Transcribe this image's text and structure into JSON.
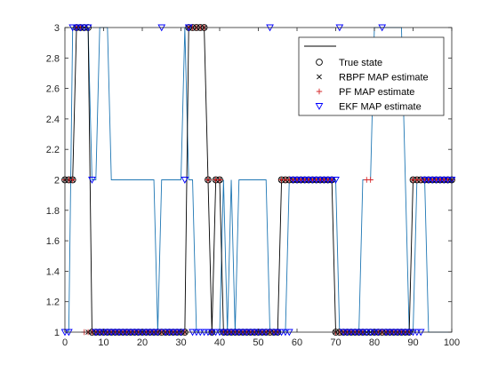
{
  "chart_data": {
    "type": "line",
    "xlim": [
      0,
      100
    ],
    "ylim": [
      1,
      3
    ],
    "xticks": [
      "0",
      "10",
      "20",
      "30",
      "40",
      "50",
      "60",
      "70",
      "80",
      "90",
      "100"
    ],
    "yticks": [
      "1",
      "1.2",
      "1.4",
      "1.6",
      "1.8",
      "2",
      "2.2",
      "2.4",
      "2.6",
      "2.8",
      "3"
    ],
    "grid": false,
    "legend_location": "top-right",
    "colors": {
      "true_state": "#000000",
      "rbpf": "#000000",
      "pf": "#d62728",
      "ekf": "#0000ff",
      "unlabeled": "#1f77b4"
    },
    "series": [
      {
        "name": "",
        "style": "line",
        "values": [
          1,
          1,
          3,
          3,
          3,
          3,
          3,
          2,
          2,
          3,
          3,
          3,
          2,
          2,
          2,
          2,
          2,
          2,
          2,
          2,
          2,
          2,
          2,
          2,
          1,
          2,
          2,
          2,
          2,
          2,
          2,
          3,
          2,
          2,
          1,
          1,
          1,
          1,
          1,
          1,
          1,
          2,
          1,
          2,
          1,
          2,
          2,
          2,
          2,
          2,
          2,
          2,
          2,
          1,
          1,
          1,
          1,
          1,
          2,
          2,
          2,
          2,
          2,
          2,
          2,
          2,
          2,
          2,
          2,
          2,
          2,
          1,
          1,
          1,
          1,
          1,
          1,
          2,
          2,
          2,
          3,
          3,
          3,
          3,
          3,
          3,
          3,
          3,
          2,
          1,
          1,
          2,
          2,
          2,
          1,
          1,
          1,
          1,
          1,
          1,
          1
        ]
      },
      {
        "name": "",
        "style": "line",
        "values": [
          2,
          2,
          2,
          3,
          3,
          3,
          3,
          1,
          1,
          1,
          1,
          1,
          1,
          1,
          1,
          1,
          1,
          1,
          1,
          1,
          1,
          1,
          1,
          1,
          1,
          1,
          1,
          1,
          1,
          1,
          1,
          1,
          3,
          3,
          3,
          3,
          3,
          2,
          1,
          2,
          2,
          1,
          1,
          1,
          1,
          1,
          1,
          1,
          1,
          1,
          1,
          1,
          1,
          1,
          1,
          1,
          2,
          2,
          2,
          2,
          2,
          2,
          2,
          2,
          2,
          2,
          2,
          2,
          2,
          2,
          1,
          1,
          1,
          1,
          1,
          1,
          1,
          1,
          1,
          1,
          1,
          1,
          1,
          1,
          1,
          1,
          1,
          1,
          1,
          1,
          2,
          2,
          2,
          2,
          2,
          2,
          2,
          2,
          2,
          2,
          2
        ]
      },
      {
        "name": "True state",
        "style": "marker",
        "marker": "circle",
        "values": [
          2,
          2,
          2,
          3,
          3,
          3,
          3,
          1,
          1,
          1,
          1,
          1,
          1,
          1,
          1,
          1,
          1,
          1,
          1,
          1,
          1,
          1,
          1,
          1,
          1,
          1,
          1,
          1,
          1,
          1,
          1,
          1,
          3,
          3,
          3,
          3,
          3,
          2,
          1,
          2,
          2,
          1,
          1,
          1,
          1,
          1,
          1,
          1,
          1,
          1,
          1,
          1,
          1,
          1,
          1,
          1,
          2,
          2,
          2,
          2,
          2,
          2,
          2,
          2,
          2,
          2,
          2,
          2,
          2,
          2,
          1,
          1,
          1,
          1,
          1,
          1,
          1,
          1,
          1,
          1,
          1,
          1,
          1,
          1,
          1,
          1,
          1,
          1,
          1,
          1,
          2,
          2,
          2,
          2,
          2,
          2,
          2,
          2,
          2,
          2,
          2
        ]
      },
      {
        "name": "RBPF MAP estimate",
        "style": "marker",
        "marker": "x",
        "values": [
          2,
          2,
          2,
          3,
          3,
          3,
          1,
          1,
          1,
          1,
          1,
          1,
          1,
          1,
          1,
          1,
          1,
          1,
          1,
          1,
          1,
          1,
          1,
          1,
          1,
          1,
          1,
          1,
          1,
          1,
          1,
          1,
          3,
          3,
          3,
          3,
          3,
          2,
          1,
          2,
          2,
          1,
          1,
          1,
          1,
          1,
          1,
          1,
          1,
          1,
          1,
          1,
          1,
          1,
          1,
          1,
          2,
          2,
          2,
          2,
          2,
          2,
          2,
          2,
          2,
          2,
          2,
          2,
          2,
          2,
          1,
          1,
          1,
          1,
          1,
          1,
          1,
          1,
          1,
          1,
          1,
          1,
          1,
          1,
          1,
          1,
          1,
          1,
          1,
          1,
          2,
          2,
          2,
          2,
          2,
          2,
          2,
          2,
          2,
          2,
          2
        ]
      },
      {
        "name": "PF MAP estimate",
        "style": "marker",
        "marker": "plus",
        "values": [
          2,
          2,
          2,
          3,
          3,
          1,
          1,
          1,
          1,
          1,
          1,
          1,
          1,
          1,
          1,
          1,
          1,
          1,
          1,
          1,
          1,
          1,
          1,
          1,
          1,
          1,
          1,
          1,
          1,
          1,
          1,
          1,
          3,
          3,
          3,
          3,
          3,
          2,
          1,
          2,
          2,
          1,
          1,
          1,
          1,
          1,
          1,
          1,
          1,
          1,
          1,
          1,
          1,
          1,
          1,
          1,
          2,
          2,
          2,
          2,
          2,
          2,
          2,
          2,
          2,
          2,
          2,
          2,
          2,
          2,
          1,
          1,
          1,
          1,
          1,
          1,
          1,
          1,
          2,
          2,
          1,
          1,
          1,
          1,
          1,
          1,
          1,
          1,
          1,
          1,
          2,
          2,
          2,
          2,
          2,
          2,
          2,
          2,
          2,
          2,
          2
        ]
      },
      {
        "name": "EKF MAP estimate",
        "style": "marker",
        "marker": "triangle-down",
        "values": [
          1,
          1,
          3,
          3,
          3,
          3,
          3,
          2,
          1,
          1,
          1,
          1,
          1,
          1,
          1,
          1,
          1,
          1,
          1,
          1,
          1,
          1,
          1,
          1,
          1,
          3,
          1,
          1,
          1,
          1,
          1,
          2,
          3,
          1,
          1,
          1,
          1,
          1,
          1,
          1,
          1,
          1,
          1,
          1,
          1,
          1,
          1,
          1,
          1,
          1,
          1,
          1,
          1,
          3,
          1,
          1,
          1,
          1,
          1,
          2,
          2,
          2,
          2,
          2,
          2,
          2,
          2,
          2,
          2,
          2,
          2,
          3,
          1,
          1,
          1,
          1,
          1,
          1,
          1,
          1,
          1,
          1,
          3,
          1,
          1,
          1,
          1,
          1,
          1,
          1,
          1,
          1,
          1,
          2,
          2,
          2,
          2,
          2,
          2,
          2,
          2
        ]
      }
    ]
  }
}
